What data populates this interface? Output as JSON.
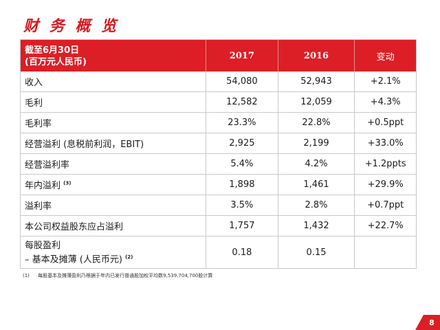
{
  "title": "财 务 概 览",
  "header": {
    "label_line1": "截至6月30日",
    "label_line2": "(百万元人民币)",
    "col_2017": "2017",
    "col_2016": "2016",
    "col_change": "变动"
  },
  "rows": [
    {
      "label": "收入",
      "sup": "",
      "v2017": "54,080",
      "v2016": "52,943",
      "change": "+2.1%"
    },
    {
      "label": "毛利",
      "sup": "",
      "v2017": "12,582",
      "v2016": "12,059",
      "change": "+4.3%"
    },
    {
      "label": "毛利率",
      "sup": "",
      "v2017": "23.3%",
      "v2016": "22.8%",
      "change": "+0.5ppt"
    },
    {
      "label": "经营溢利 (息税前利润，EBIT)",
      "sup": "",
      "v2017": "2,925",
      "v2016": "2,199",
      "change": "+33.0%"
    },
    {
      "label": "经营溢利率",
      "sup": "",
      "v2017": "5.4%",
      "v2016": "4.2%",
      "change": "+1.2ppts"
    },
    {
      "label": "年内溢利",
      "sup": "(3)",
      "v2017": "1,898",
      "v2016": "1,461",
      "change": "+29.9%"
    },
    {
      "label": "溢利率",
      "sup": "",
      "v2017": "3.5%",
      "v2016": "2.8%",
      "change": "+0.7ppt"
    },
    {
      "label": "本公司权益股东应占溢利",
      "sup": "",
      "v2017": "1,757",
      "v2016": "1,432",
      "change": "+22.7%"
    }
  ],
  "eps": {
    "line1": "每股盈利",
    "line2": "– 基本及摊薄 (人民币元)",
    "sup": "(2)",
    "v2017": "0.18",
    "v2016": "0.15",
    "change": ""
  },
  "footnote": {
    "num": "(1)",
    "text": "每股基本及摊薄盈利乃根据于年内已发行普通股加权平均数9,539,704,700股计算"
  },
  "page_number": "8",
  "colors": {
    "accent": "#dc1f26"
  }
}
